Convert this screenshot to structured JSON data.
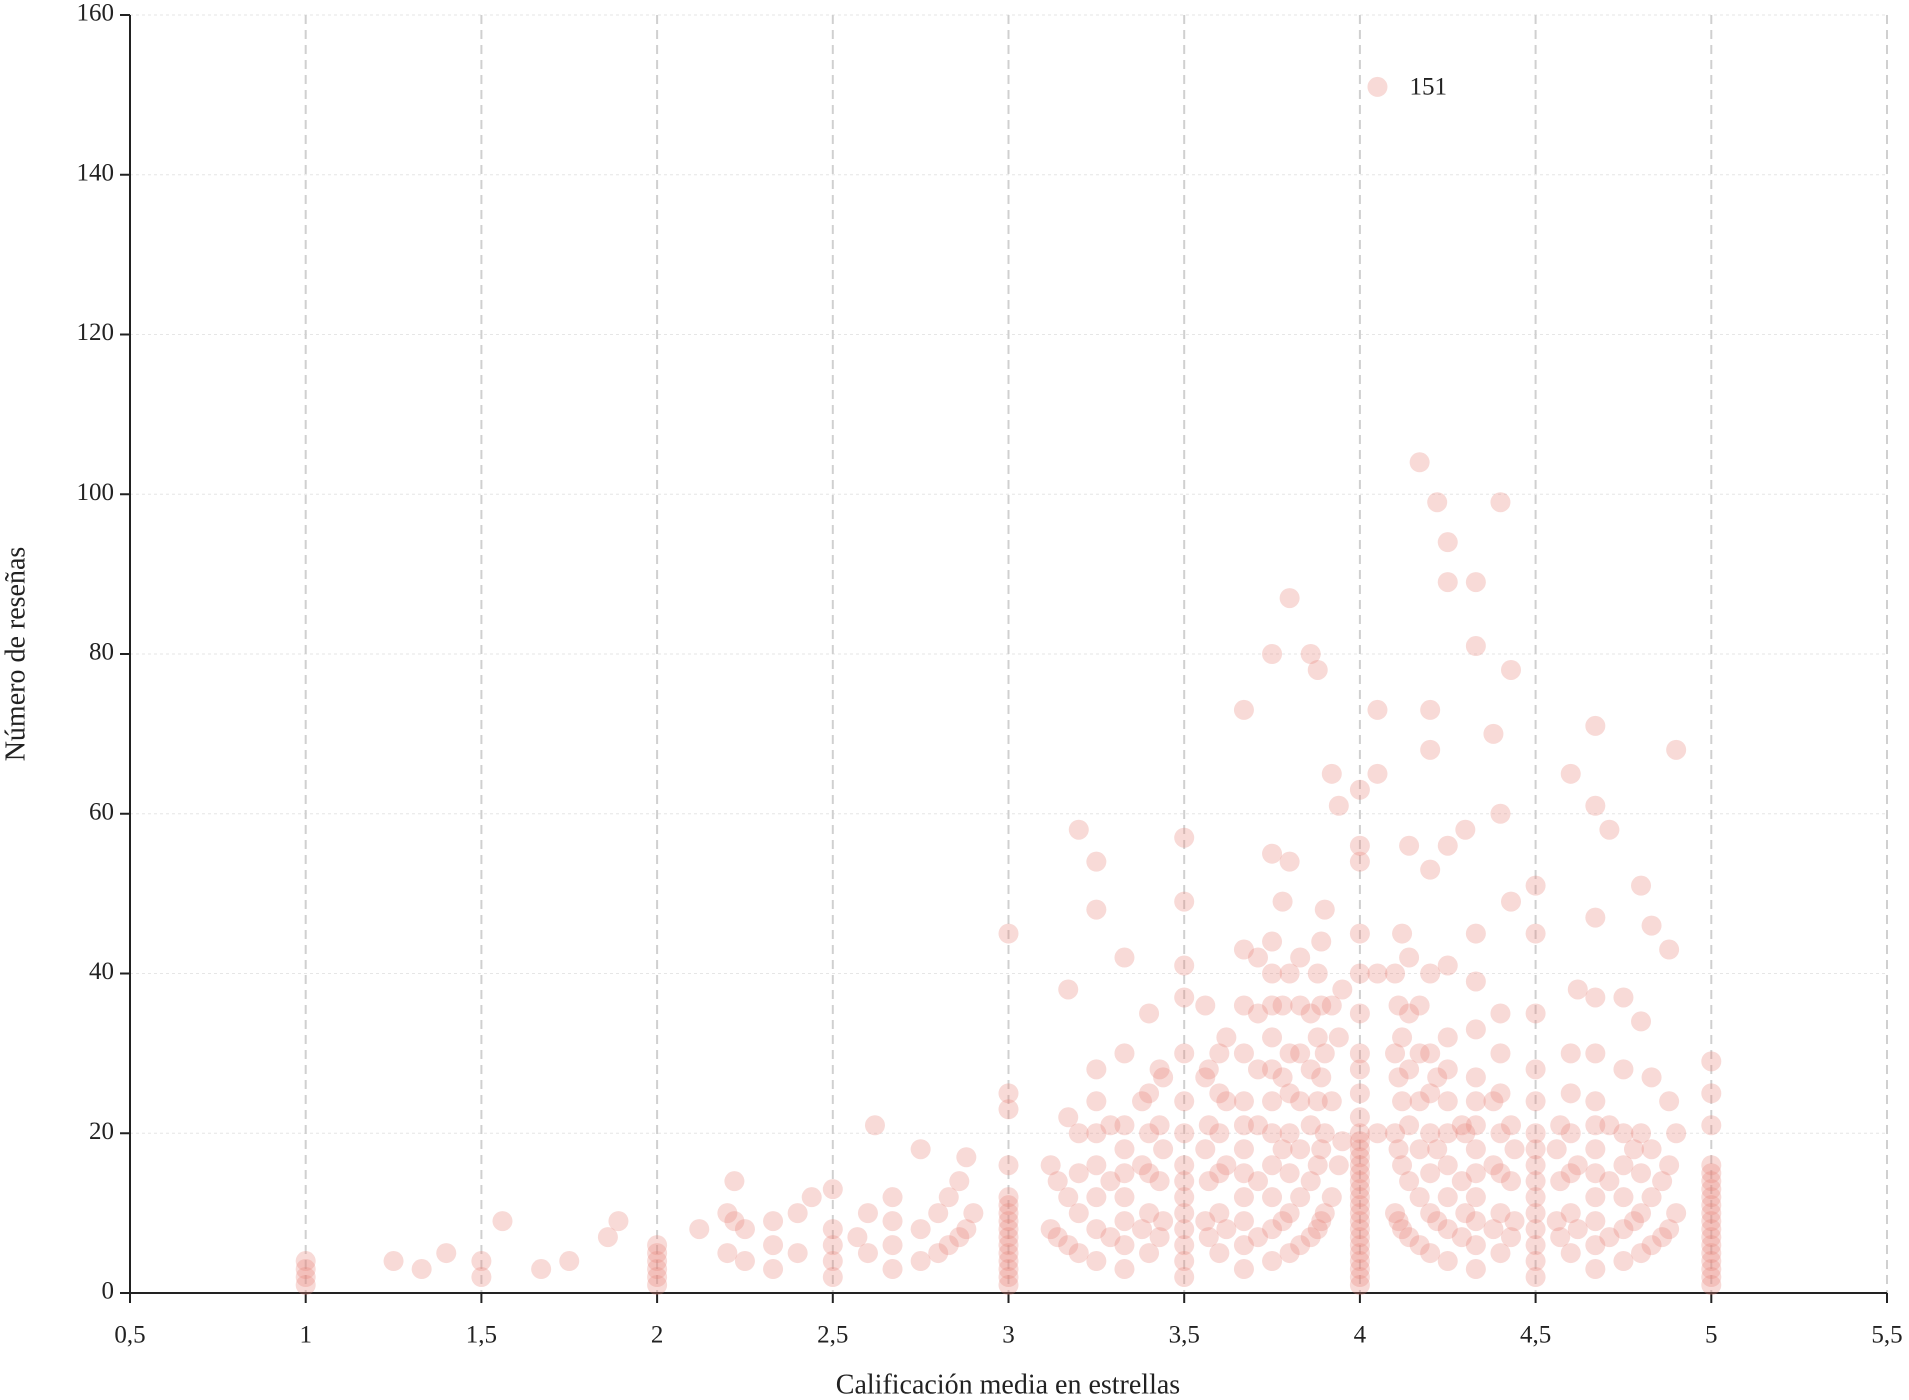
{
  "chart_data": {
    "type": "scatter",
    "xlabel": "Calificación media en estrellas",
    "ylabel": "Número de reseñas",
    "xlim": [
      0.5,
      5.5
    ],
    "xticks": [
      {
        "value": 0.5,
        "label": "0,5"
      },
      1,
      {
        "value": 1.5,
        "label": "1,5"
      },
      2,
      {
        "value": 2.5,
        "label": "2,5"
      },
      3,
      {
        "value": 3.5,
        "label": "3,5"
      },
      4,
      {
        "value": 4.5,
        "label": "4,5"
      },
      5,
      {
        "value": 5.5,
        "label": "5,5"
      }
    ],
    "ylim": [
      0,
      160
    ],
    "yticks": [
      0,
      20,
      40,
      60,
      80,
      100,
      120,
      140,
      160
    ],
    "grid": true,
    "color": "#e8837a",
    "annotation": {
      "text": "151",
      "x": 4.05,
      "y": 151
    },
    "columns": [
      {
        "x": 1,
        "values": [
          1,
          2,
          3,
          4
        ]
      },
      {
        "x": 1.25,
        "values": [
          4
        ]
      },
      {
        "x": 1.33,
        "values": [
          3
        ]
      },
      {
        "x": 1.4,
        "values": [
          5
        ]
      },
      {
        "x": 1.5,
        "values": [
          2,
          4
        ]
      },
      {
        "x": 1.56,
        "values": [
          9
        ]
      },
      {
        "x": 1.67,
        "values": [
          3
        ]
      },
      {
        "x": 1.75,
        "values": [
          4
        ]
      },
      {
        "x": 1.86,
        "values": [
          7
        ]
      },
      {
        "x": 1.89,
        "values": [
          9
        ]
      },
      {
        "x": 2,
        "values": [
          1,
          2,
          3,
          4,
          5,
          6
        ]
      },
      {
        "x": 2.12,
        "values": [
          8
        ]
      },
      {
        "x": 2.2,
        "values": [
          5,
          10
        ]
      },
      {
        "x": 2.22,
        "values": [
          9,
          14
        ]
      },
      {
        "x": 2.25,
        "values": [
          4,
          8
        ]
      },
      {
        "x": 2.33,
        "values": [
          3,
          6,
          9
        ]
      },
      {
        "x": 2.4,
        "values": [
          5,
          10
        ]
      },
      {
        "x": 2.44,
        "values": [
          12
        ]
      },
      {
        "x": 2.5,
        "values": [
          2,
          4,
          6,
          8,
          13
        ]
      },
      {
        "x": 2.57,
        "values": [
          7
        ]
      },
      {
        "x": 2.6,
        "values": [
          5,
          10
        ]
      },
      {
        "x": 2.62,
        "values": [
          21
        ]
      },
      {
        "x": 2.67,
        "values": [
          3,
          6,
          9,
          12
        ]
      },
      {
        "x": 2.75,
        "values": [
          4,
          8,
          18
        ]
      },
      {
        "x": 2.8,
        "values": [
          5,
          10
        ]
      },
      {
        "x": 2.83,
        "values": [
          6,
          12
        ]
      },
      {
        "x": 2.86,
        "values": [
          7,
          14
        ]
      },
      {
        "x": 2.88,
        "values": [
          8,
          17
        ]
      },
      {
        "x": 2.9,
        "values": [
          10
        ]
      },
      {
        "x": 3,
        "values": [
          1,
          2,
          3,
          4,
          5,
          6,
          7,
          8,
          9,
          10,
          11,
          12,
          16,
          23,
          25,
          45
        ]
      },
      {
        "x": 3.12,
        "values": [
          8,
          16
        ]
      },
      {
        "x": 3.14,
        "values": [
          7,
          14
        ]
      },
      {
        "x": 3.17,
        "values": [
          6,
          12,
          22,
          38
        ]
      },
      {
        "x": 3.2,
        "values": [
          5,
          10,
          15,
          20,
          58
        ]
      },
      {
        "x": 3.25,
        "values": [
          4,
          8,
          12,
          16,
          20,
          24,
          28,
          48,
          54
        ]
      },
      {
        "x": 3.29,
        "values": [
          7,
          14,
          21
        ]
      },
      {
        "x": 3.33,
        "values": [
          3,
          6,
          9,
          12,
          15,
          18,
          21,
          30,
          42
        ]
      },
      {
        "x": 3.38,
        "values": [
          8,
          16,
          24
        ]
      },
      {
        "x": 3.4,
        "values": [
          5,
          10,
          15,
          20,
          25,
          35
        ]
      },
      {
        "x": 3.43,
        "values": [
          7,
          14,
          21,
          28
        ]
      },
      {
        "x": 3.44,
        "values": [
          9,
          18,
          27
        ]
      },
      {
        "x": 3.5,
        "values": [
          2,
          4,
          6,
          8,
          10,
          12,
          14,
          16,
          20,
          24,
          30,
          37,
          41,
          49,
          57
        ]
      },
      {
        "x": 3.56,
        "values": [
          9,
          18,
          27,
          36
        ]
      },
      {
        "x": 3.57,
        "values": [
          7,
          14,
          21,
          28
        ]
      },
      {
        "x": 3.6,
        "values": [
          5,
          10,
          15,
          20,
          25,
          30
        ]
      },
      {
        "x": 3.62,
        "values": [
          8,
          16,
          24,
          32
        ]
      },
      {
        "x": 3.67,
        "values": [
          3,
          6,
          9,
          12,
          15,
          18,
          21,
          24,
          30,
          36,
          43,
          73
        ]
      },
      {
        "x": 3.71,
        "values": [
          7,
          14,
          21,
          28,
          35,
          42
        ]
      },
      {
        "x": 3.75,
        "values": [
          4,
          8,
          12,
          16,
          20,
          24,
          28,
          32,
          36,
          40,
          44,
          55,
          80
        ]
      },
      {
        "x": 3.78,
        "values": [
          9,
          18,
          27,
          36,
          49
        ]
      },
      {
        "x": 3.8,
        "values": [
          5,
          10,
          15,
          20,
          25,
          30,
          40,
          54,
          87
        ]
      },
      {
        "x": 3.83,
        "values": [
          6,
          12,
          18,
          24,
          30,
          36,
          42
        ]
      },
      {
        "x": 3.86,
        "values": [
          7,
          14,
          21,
          28,
          35,
          80
        ]
      },
      {
        "x": 3.88,
        "values": [
          8,
          16,
          24,
          32,
          40,
          78
        ]
      },
      {
        "x": 3.89,
        "values": [
          9,
          18,
          27,
          36,
          44
        ]
      },
      {
        "x": 3.9,
        "values": [
          10,
          20,
          30,
          48
        ]
      },
      {
        "x": 3.92,
        "values": [
          12,
          24,
          36,
          65
        ]
      },
      {
        "x": 3.94,
        "values": [
          16,
          32,
          61
        ]
      },
      {
        "x": 3.95,
        "values": [
          19,
          38
        ]
      },
      {
        "x": 4,
        "values": [
          1,
          2,
          3,
          4,
          5,
          6,
          7,
          8,
          9,
          10,
          11,
          12,
          13,
          14,
          15,
          16,
          17,
          18,
          19,
          20,
          22,
          25,
          28,
          30,
          35,
          40,
          45,
          54,
          56,
          63
        ]
      },
      {
        "x": 4.05,
        "values": [
          20,
          40,
          65,
          73,
          151
        ]
      },
      {
        "x": 4.1,
        "values": [
          10,
          20,
          30,
          40
        ]
      },
      {
        "x": 4.11,
        "values": [
          9,
          18,
          27,
          36
        ]
      },
      {
        "x": 4.12,
        "values": [
          8,
          16,
          24,
          32,
          45
        ]
      },
      {
        "x": 4.14,
        "values": [
          7,
          14,
          21,
          28,
          35,
          42,
          56
        ]
      },
      {
        "x": 4.17,
        "values": [
          6,
          12,
          18,
          24,
          30,
          36,
          104
        ]
      },
      {
        "x": 4.2,
        "values": [
          5,
          10,
          15,
          20,
          25,
          30,
          40,
          53,
          68,
          73
        ]
      },
      {
        "x": 4.22,
        "values": [
          9,
          18,
          27,
          99
        ]
      },
      {
        "x": 4.25,
        "values": [
          4,
          8,
          12,
          16,
          20,
          24,
          28,
          32,
          41,
          56,
          89,
          94
        ]
      },
      {
        "x": 4.29,
        "values": [
          7,
          14,
          21
        ]
      },
      {
        "x": 4.3,
        "values": [
          10,
          20,
          58
        ]
      },
      {
        "x": 4.33,
        "values": [
          3,
          6,
          9,
          12,
          15,
          18,
          21,
          24,
          27,
          33,
          39,
          45,
          81,
          89
        ]
      },
      {
        "x": 4.38,
        "values": [
          8,
          16,
          24,
          70
        ]
      },
      {
        "x": 4.4,
        "values": [
          5,
          10,
          15,
          20,
          25,
          30,
          35,
          60,
          99
        ]
      },
      {
        "x": 4.43,
        "values": [
          7,
          14,
          21,
          49,
          78
        ]
      },
      {
        "x": 4.44,
        "values": [
          9,
          18
        ]
      },
      {
        "x": 4.5,
        "values": [
          2,
          4,
          6,
          8,
          10,
          12,
          14,
          16,
          18,
          20,
          24,
          28,
          35,
          45,
          51
        ]
      },
      {
        "x": 4.56,
        "values": [
          9,
          18
        ]
      },
      {
        "x": 4.57,
        "values": [
          7,
          14,
          21
        ]
      },
      {
        "x": 4.6,
        "values": [
          5,
          10,
          15,
          20,
          25,
          30,
          65
        ]
      },
      {
        "x": 4.62,
        "values": [
          8,
          16,
          38
        ]
      },
      {
        "x": 4.67,
        "values": [
          3,
          6,
          9,
          12,
          15,
          18,
          21,
          24,
          30,
          37,
          47,
          61,
          71
        ]
      },
      {
        "x": 4.71,
        "values": [
          7,
          14,
          21,
          58
        ]
      },
      {
        "x": 4.75,
        "values": [
          4,
          8,
          12,
          16,
          20,
          28,
          37
        ]
      },
      {
        "x": 4.78,
        "values": [
          9,
          18
        ]
      },
      {
        "x": 4.8,
        "values": [
          5,
          10,
          15,
          20,
          34,
          51
        ]
      },
      {
        "x": 4.83,
        "values": [
          6,
          12,
          18,
          27,
          46
        ]
      },
      {
        "x": 4.86,
        "values": [
          7,
          14
        ]
      },
      {
        "x": 4.88,
        "values": [
          8,
          16,
          24,
          43
        ]
      },
      {
        "x": 4.9,
        "values": [
          10,
          20,
          68
        ]
      },
      {
        "x": 5,
        "values": [
          1,
          2,
          3,
          4,
          5,
          6,
          7,
          8,
          9,
          10,
          11,
          12,
          13,
          14,
          15,
          16,
          21,
          25,
          29
        ]
      }
    ]
  }
}
